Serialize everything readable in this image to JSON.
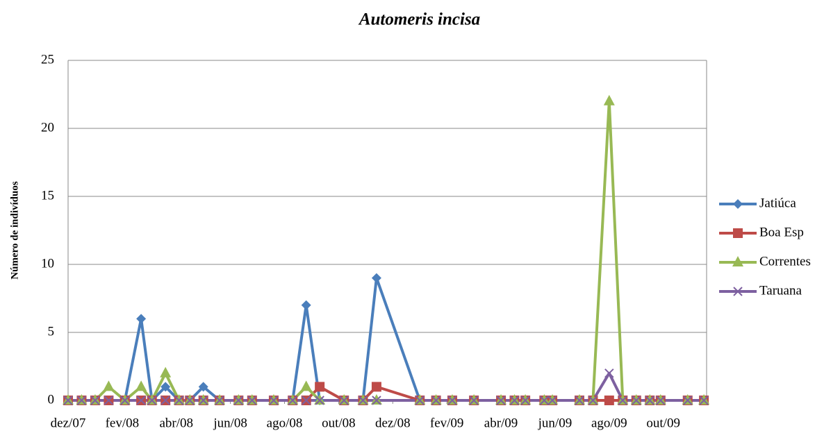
{
  "chart_data": {
    "type": "line",
    "title": "Automeris incisa",
    "y_label": "Número de indivíduos",
    "x": [
      0,
      0.5,
      1.0,
      1.5,
      2.1,
      2.7,
      3.1,
      3.6,
      4.1,
      4.5,
      5.0,
      5.6,
      6.3,
      6.8,
      7.6,
      8.3,
      8.8,
      9.3,
      10.2,
      10.9,
      11.4,
      13.0,
      13.6,
      14.2,
      15.0,
      16.0,
      16.5,
      16.9,
      17.6,
      17.9,
      18.9,
      19.4,
      20.0,
      20.5,
      21.0,
      21.5,
      21.9,
      22.9,
      23.5
    ],
    "xlim": [
      0,
      23.6
    ],
    "xticks": [
      {
        "value": 0,
        "label": "dez/07"
      },
      {
        "value": 2,
        "label": "fev/08"
      },
      {
        "value": 4,
        "label": "abr/08"
      },
      {
        "value": 6,
        "label": "jun/08"
      },
      {
        "value": 8,
        "label": "ago/08"
      },
      {
        "value": 10,
        "label": "out/08"
      },
      {
        "value": 12,
        "label": "dez/08"
      },
      {
        "value": 14,
        "label": "fev/09"
      },
      {
        "value": 16,
        "label": "abr/09"
      },
      {
        "value": 18,
        "label": "jun/09"
      },
      {
        "value": 20,
        "label": "ago/09"
      },
      {
        "value": 22,
        "label": "out/09"
      }
    ],
    "ylim": [
      0,
      25
    ],
    "yticks": [
      0,
      5,
      10,
      15,
      20,
      25
    ],
    "grid": true,
    "legend": "right",
    "series": [
      {
        "name": "Jatiúca",
        "color": "#4a7ebb",
        "marker": "diamond",
        "values": [
          0,
          0,
          0,
          0,
          0,
          6,
          0,
          1,
          0,
          0,
          1,
          0,
          0,
          0,
          0,
          0,
          7,
          0,
          0,
          0,
          9,
          0,
          0,
          0,
          0,
          0,
          0,
          0,
          0,
          0,
          0,
          0,
          0,
          0,
          0,
          0,
          0,
          0,
          0
        ]
      },
      {
        "name": "Boa Esp",
        "color": "#be4b48",
        "marker": "square",
        "values": [
          0,
          0,
          0,
          0,
          0,
          0,
          0,
          0,
          0,
          0,
          0,
          0,
          0,
          0,
          0,
          0,
          0,
          1,
          0,
          0,
          1,
          0,
          0,
          0,
          0,
          0,
          0,
          0,
          0,
          0,
          0,
          0,
          0,
          0,
          0,
          0,
          0,
          0,
          0
        ]
      },
      {
        "name": "Correntes",
        "color": "#98b954",
        "marker": "triangle",
        "values": [
          0,
          0,
          0,
          1,
          0,
          1,
          0,
          2,
          0,
          0,
          0,
          0,
          0,
          0,
          0,
          0,
          1,
          0,
          0,
          0,
          0,
          0,
          0,
          0,
          0,
          0,
          0,
          0,
          0,
          0,
          0,
          0,
          22,
          0,
          0,
          0,
          0,
          0,
          0
        ]
      },
      {
        "name": "Taruana",
        "color": "#7d60a0",
        "marker": "x",
        "values": [
          0,
          0,
          0,
          0,
          0,
          0,
          0,
          0,
          0,
          0,
          0,
          0,
          0,
          0,
          0,
          0,
          0,
          0,
          0,
          0,
          0,
          0,
          0,
          0,
          0,
          0,
          0,
          0,
          0,
          0,
          0,
          0,
          2,
          0,
          0,
          0,
          0,
          0,
          0
        ]
      }
    ]
  }
}
